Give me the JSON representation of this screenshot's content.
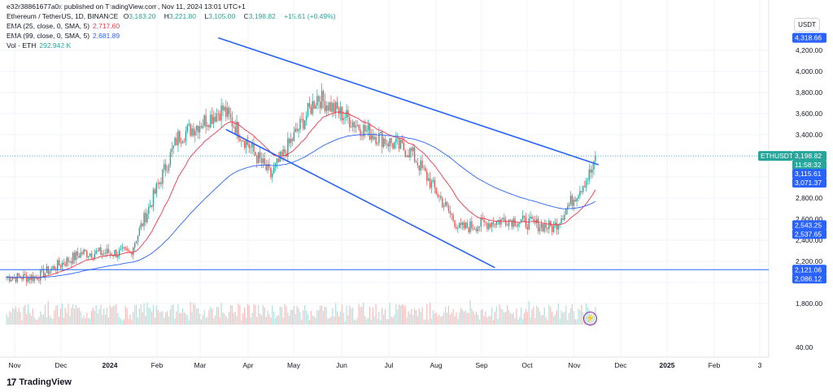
{
  "header": {
    "publisher": "e32r38861677a0x published on TradingView.com, Nov 11, 2024 13:01 UTC+1",
    "symbol": "Ethereum / TetherUS, 1D, BINANCE",
    "ohlc": {
      "O": "3,183.20",
      "H": "3,221.80",
      "L": "3,105.00",
      "C": "3,198.82",
      "change": "+15.61 (+0.49%)"
    },
    "ema25_label": "EMA (25, close, 0, SMA, 5)",
    "ema25_value": "2,717.60",
    "ema99_label": "EMA (99, close, 0, SMA, 5)",
    "ema99_value": "2,681.89",
    "vol_label": "Vol · ETH",
    "vol_value": "292.942 K"
  },
  "unit": "USDT",
  "logo_text": "TradingView",
  "logo_mark": "17",
  "colors": {
    "up": "#26a69a",
    "down": "#ef5350",
    "ema25": "#f23645",
    "ema99": "#2962ff",
    "channel": "#2962ff",
    "vol_up": "#b2dfdb",
    "vol_down": "#f7bcbc"
  },
  "chart_data": {
    "type": "candlestick",
    "symbol": "ETHUSDT",
    "x_axis_labels": [
      "Nov",
      "Dec",
      "2024",
      "Feb",
      "Mar",
      "Apr",
      "May",
      "Jun",
      "Jul",
      "Aug",
      "Sep",
      "Oct",
      "Nov",
      "Dec",
      "2025",
      "Feb",
      "3"
    ],
    "y_axis_labels": [
      "4,200.00",
      "4,000.00",
      "3,800.00",
      "3,600.00",
      "3,400.00",
      "2,800.00",
      "2,600.00",
      "2,400.00",
      "2,200.00",
      "1,800.00",
      "40.00"
    ],
    "price_badges": [
      {
        "label": "",
        "value": "4,318.66",
        "color": "#2962ff"
      },
      {
        "label": "ETHUSDT",
        "value": "3,198.82",
        "color": "#26a69a"
      },
      {
        "label": "",
        "value": "11:58:32",
        "color": "#26a69a"
      },
      {
        "label": "",
        "value": "3,115.61",
        "color": "#2962ff"
      },
      {
        "label": "",
        "value": "3,071.37",
        "color": "#2962ff"
      },
      {
        "label": "",
        "value": "2,543.25",
        "color": "#2962ff"
      },
      {
        "label": "",
        "value": "2,537.65",
        "color": "#2962ff"
      },
      {
        "label": "",
        "value": "2,121.06",
        "color": "#2962ff"
      },
      {
        "label": "",
        "value": "2,086.12",
        "color": "#2962ff"
      }
    ],
    "monthly_path": [
      {
        "month": "Nov 2023",
        "close": 2050
      },
      {
        "month": "Dec 2023",
        "close": 2280
      },
      {
        "month": "Jan 2024",
        "close": 2280
      },
      {
        "month": "Feb 2024",
        "close": 3380
      },
      {
        "month": "Mar 2024",
        "close": 3640
      },
      {
        "month": "Apr 2024",
        "close": 3010
      },
      {
        "month": "May 2024",
        "close": 3760
      },
      {
        "month": "Jun 2024",
        "close": 3440
      },
      {
        "month": "Jul 2024",
        "close": 3230
      },
      {
        "month": "Aug 2024",
        "close": 2510
      },
      {
        "month": "Sep 2024",
        "close": 2600
      },
      {
        "month": "Oct 2024",
        "close": 2520
      },
      {
        "month": "Nov 2024",
        "close": 3198.82
      }
    ],
    "upper_trendline": [
      {
        "date": "2024-03-12",
        "price": 4318.66
      },
      {
        "date": "2024-11-13",
        "price": 3115.61
      }
    ],
    "lower_trendline": [
      {
        "date": "2024-03-17",
        "price": 3450
      },
      {
        "date": "2024-09-07",
        "price": 2140
      }
    ],
    "support_line": 2121.06,
    "annotations": {
      "max_price": 4093,
      "min_wick": 2111
    }
  }
}
